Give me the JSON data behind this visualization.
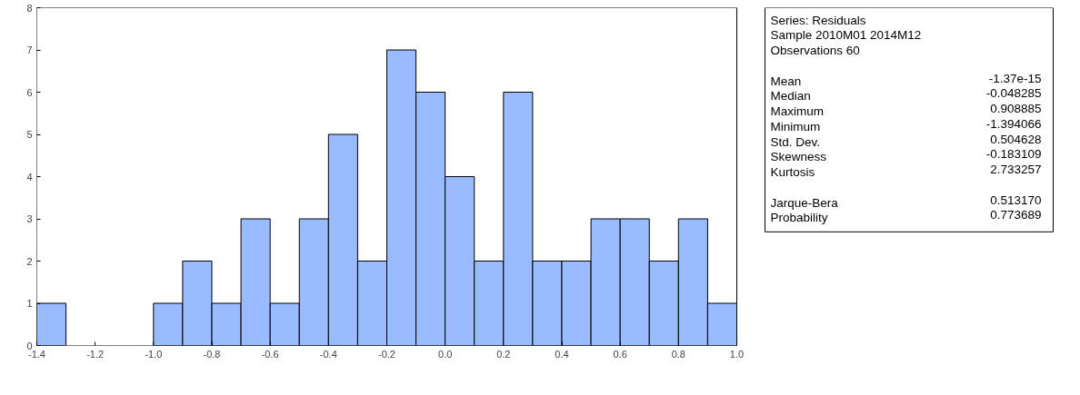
{
  "chart_data": {
    "type": "histogram",
    "bins": [
      -1.4,
      -1.3,
      -1.2,
      -1.1,
      -1.0,
      -0.9,
      -0.8,
      -0.7,
      -0.6,
      -0.5,
      -0.4,
      -0.3,
      -0.2,
      -0.1,
      0.0,
      0.1,
      0.2,
      0.3,
      0.4,
      0.5,
      0.6,
      0.7,
      0.8,
      0.9,
      1.0
    ],
    "values": [
      1,
      0,
      0,
      0,
      1,
      2,
      1,
      3,
      1,
      3,
      5,
      2,
      7,
      6,
      4,
      2,
      6,
      2,
      2,
      3,
      3,
      2,
      3,
      1
    ],
    "color": "#99bbff",
    "xlim": [
      -1.4,
      1.0
    ],
    "xticks": [
      {
        "value": -1.4,
        "label": "-1.4"
      },
      {
        "value": -1.2,
        "label": "-1.2"
      },
      {
        "value": -1.0,
        "label": "-1.0"
      },
      {
        "value": -0.8,
        "label": "-0.8"
      },
      {
        "value": -0.6,
        "label": "-0.6"
      },
      {
        "value": -0.4,
        "label": "-0.4"
      },
      {
        "value": -0.2,
        "label": "-0.2"
      },
      {
        "value": 0.0,
        "label": "0.0"
      },
      {
        "value": 0.2,
        "label": "0.2"
      },
      {
        "value": 0.4,
        "label": "0.4"
      },
      {
        "value": 0.6,
        "label": "0.6"
      },
      {
        "value": 0.8,
        "label": "0.8"
      },
      {
        "value": 1.0,
        "label": "1.0"
      }
    ],
    "ylim": [
      0,
      8
    ],
    "yticks": [
      0,
      1,
      2,
      3,
      4,
      5,
      6,
      7,
      8
    ],
    "grid": false,
    "annotations": [
      "Series: Residuals",
      "Sample 2010M01 2014M12",
      "Observations 60",
      "Mean\t-1.37e-15",
      "Median\t-0.048285",
      "Maximum\t 0.908885",
      "Minimum\t-1.394066",
      "Std. Dev.\t 0.504628",
      "Skewness\t-0.183109",
      "Kurtosis\t 2.733257",
      "Jarque-Bera\t 0.513170",
      "Probability\t 0.773689"
    ]
  }
}
